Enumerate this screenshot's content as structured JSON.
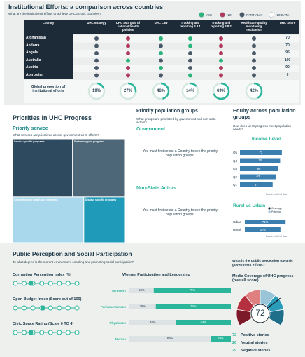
{
  "header": {
    "title": "Institutional Efforts: a comparison across countries",
    "subtitle": "What are the institutional efforts to achieve UHC across countries?"
  },
  "legend": [
    {
      "label": "YES",
      "color": "#2bb57c"
    },
    {
      "label": "NO",
      "color": "#b03a5b"
    },
    {
      "label": "PARTIALLY",
      "color": "#4a5968"
    },
    {
      "label": "NO DATA",
      "color": "#ffffff"
    }
  ],
  "table": {
    "columns": [
      "Country",
      "UHC strategy",
      "UHC as a goal of national health policies",
      "UHC Law",
      "Tracking and reporting 3.8.1",
      "Tracking and reporting 3.8.2",
      "Healthcare quality monitoring mechanism",
      "UHC Score"
    ],
    "rows": [
      {
        "country": "Afghanistan",
        "status": [
          "PARTIALLY",
          "NO",
          "YES",
          "YES",
          "NO",
          "PARTIALLY"
        ],
        "score": 70
      },
      {
        "country": "Andorra",
        "status": [
          "PARTIALLY",
          "NO",
          "PARTIALLY",
          "YES",
          "NO",
          "PARTIALLY"
        ],
        "score": 70
      },
      {
        "country": "Angola",
        "status": [
          "PARTIALLY",
          "NO",
          "YES",
          "PARTIALLY",
          "NO",
          "PARTIALLY"
        ],
        "score": 95
      },
      {
        "country": "Australia",
        "status": [
          "PARTIALLY",
          "YES",
          "PARTIALLY",
          "PARTIALLY",
          "YES",
          "PARTIALLY"
        ],
        "score": 100
      },
      {
        "country": "Austria",
        "status": [
          "PARTIALLY",
          "NO",
          "YES",
          "PARTIALLY",
          "NO",
          "PARTIALLY"
        ],
        "score": 90
      },
      {
        "country": "Azerbaijan",
        "status": [
          "PARTIALLY",
          "NO",
          "PARTIALLY",
          "YES",
          "NO",
          "PARTIALLY"
        ],
        "score": 0
      }
    ]
  },
  "global": {
    "label": "Global proportion of institutional efforts",
    "values": [
      19,
      27,
      46,
      14,
      69,
      42
    ],
    "value_labels": [
      "19%",
      "27%",
      "46%",
      "14%",
      "69%",
      "42%"
    ],
    "range": [
      0,
      100
    ]
  },
  "priorities": {
    "title": "Priorities in UHC Progress"
  },
  "priority_service": {
    "title": "Priority service",
    "subtitle": "What services are prioritized across government UHC efforts?",
    "groups": [
      {
        "name": "Service specific programs",
        "value": 30,
        "color": "#2e4a5e"
      },
      {
        "name": "System support programs",
        "value": 26,
        "color": "#4d6678"
      },
      {
        "name": "Comprehensive health care programs",
        "value": 28,
        "color": "#a9d8ec"
      },
      {
        "name": "Disease specific programs",
        "value": 16,
        "color": "#1f9ab8"
      }
    ]
  },
  "population": {
    "title": "Priority population groups",
    "subtitle": "What groups are prioritized by government and non-state actors?",
    "groups": [
      {
        "name": "Government",
        "message": "You must first select a Country to see the priority population groups."
      },
      {
        "name": "Non-State Actors",
        "message": "You must first select a Country to see the priority population groups."
      }
    ]
  },
  "equity": {
    "title": "Equity across population groups",
    "subtitle": "How does UHC progress meet population needs?",
    "income": {
      "title": "Income Level",
      "categories": [
        "Q5",
        "Q4",
        "Q3",
        "Q2",
        "Q1"
      ],
      "values": [
        73,
        70,
        66,
        63,
        57
      ],
      "xlim": [
        0,
        100
      ],
      "color": "#3b7fb0",
      "source": "Based on WHO data"
    },
    "rural": {
      "title": "Rural vs Urban",
      "legend": [
        "Coverage",
        "Potential"
      ],
      "categories": [
        "Urban",
        "Rural"
      ],
      "values": [
        71,
        62
      ],
      "value_labels": [
        "71%",
        "62%"
      ],
      "xlim": [
        0,
        100
      ],
      "color": "#3b7fb0",
      "source": "Based on WHO data"
    }
  },
  "perception": {
    "title": "Public Perception and Social Participation",
    "subtitle": "To what degree is the current environment enabling and promoting social participation?",
    "indicators": [
      {
        "label": "Corruption Perception Index (%)",
        "value": 25,
        "xlim": [
          0,
          100
        ]
      },
      {
        "label": "Open Budget Index (Score out of 100)",
        "value": 45,
        "xlim": [
          0,
          100
        ]
      },
      {
        "label": "Civic Space Rating (Scale 0 TO 4)",
        "value": 1,
        "xlim": [
          0,
          4
        ]
      }
    ],
    "women": {
      "title": "Women Participation and Leadership",
      "categories": [
        "Ministers",
        "Parliamentarians",
        "Physicians",
        "Nurses"
      ],
      "xlim": [
        0,
        100
      ],
      "series": [
        {
          "color": "#dde2e5",
          "values": [
            24,
            26,
            46,
            80
          ],
          "value_labels": [
            "24%",
            "26%",
            "46%",
            "80%"
          ]
        },
        {
          "color": "#2bb59a",
          "values": [
            76,
            74,
            54,
            20
          ],
          "value_labels": [
            "76%",
            "74%",
            "54%",
            "20%"
          ]
        }
      ]
    },
    "question": "What is the public perception towards government efforts?",
    "media": {
      "title": "Media Coverage of UHC progress (overall score)",
      "value": 72,
      "range": [
        0,
        100
      ],
      "stories": [
        {
          "count": 72,
          "label": "Positive stories"
        },
        {
          "count": 26,
          "label": "Neutral stories"
        },
        {
          "count": 29,
          "label": "Negative stories"
        }
      ]
    }
  }
}
